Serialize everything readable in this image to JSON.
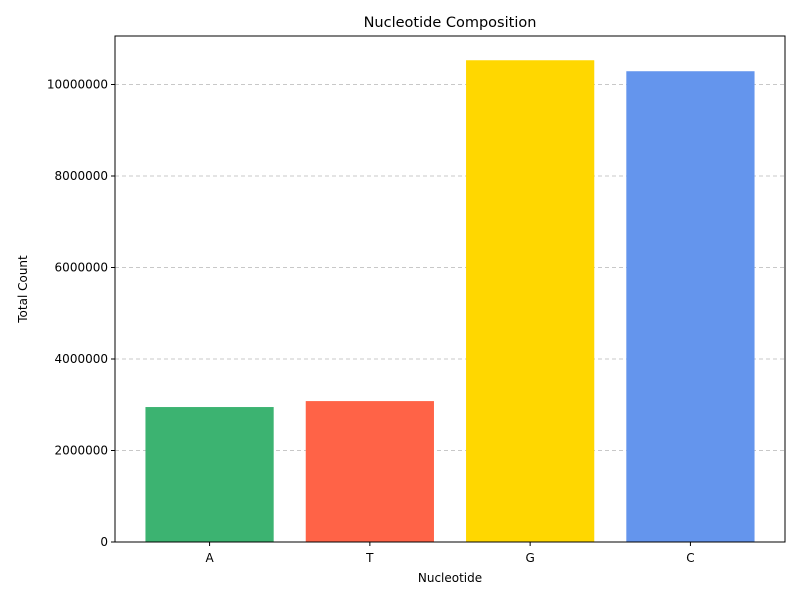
{
  "chart_data": {
    "type": "bar",
    "title": "Nucleotide Composition",
    "xlabel": "Nucleotide",
    "ylabel": "Total Count",
    "categories": [
      "A",
      "T",
      "G",
      "C"
    ],
    "values": [
      2950000,
      3080000,
      10530000,
      10290000
    ],
    "colors": [
      "#3cb371",
      "#ff6347",
      "#ffd700",
      "#6495ed"
    ],
    "ylim": [
      0,
      11060000
    ],
    "yticks": [
      0,
      2000000,
      4000000,
      6000000,
      8000000,
      10000000
    ],
    "ytick_labels": [
      "0",
      "2000000",
      "4000000",
      "6000000",
      "8000000",
      "10000000"
    ],
    "grid": "y-dashed",
    "legend": "none"
  }
}
